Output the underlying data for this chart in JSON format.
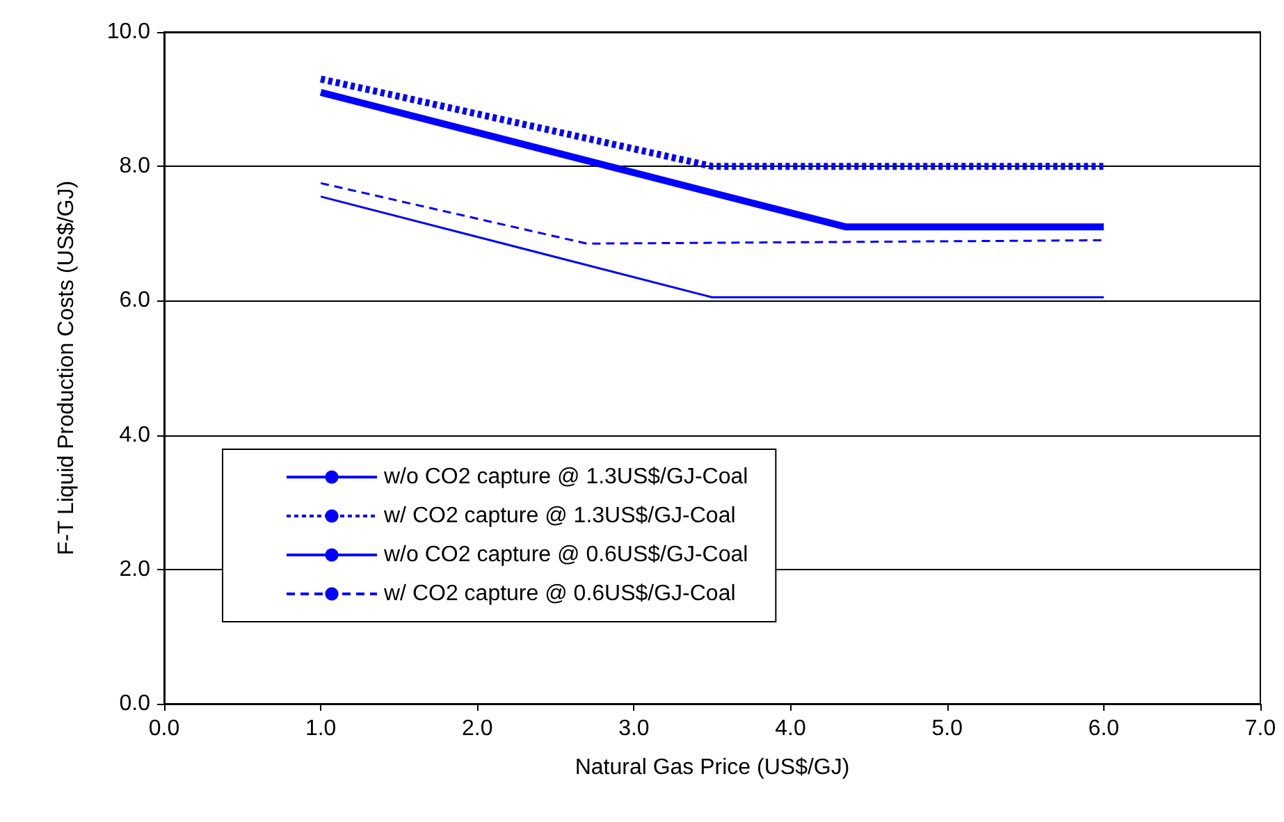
{
  "chart_data": {
    "type": "line",
    "xlabel": "Natural Gas Price (US$/GJ)",
    "ylabel": "F-T Liquid Production Costs (US$/GJ)",
    "xlim": [
      0,
      7
    ],
    "xticks": [
      {
        "value": 0,
        "label": "0.0"
      },
      {
        "value": 1,
        "label": "1.0"
      },
      {
        "value": 2,
        "label": "2.0"
      },
      {
        "value": 3,
        "label": "3.0"
      },
      {
        "value": 4,
        "label": "4.0"
      },
      {
        "value": 5,
        "label": "5.0"
      },
      {
        "value": 6,
        "label": "6.0"
      },
      {
        "value": 7,
        "label": "7.0"
      }
    ],
    "ylim": [
      0,
      10
    ],
    "yticks": [
      {
        "value": 0,
        "label": "0.0"
      },
      {
        "value": 2,
        "label": "2.0"
      },
      {
        "value": 4,
        "label": "4.0"
      },
      {
        "value": 6,
        "label": "6.0"
      },
      {
        "value": 8,
        "label": "8.0"
      },
      {
        "value": 10,
        "label": "10.0"
      }
    ],
    "grid": "y",
    "legend": "bottom left",
    "marker": "none",
    "series": [
      {
        "name": "w/o CO2 capture @ 1.3US$/GJ-Coal",
        "color": "#0000ff",
        "line_style": "solid",
        "x": [
          1,
          4.35,
          6
        ],
        "values": [
          9.1,
          7.1,
          7.1
        ]
      },
      {
        "name": "w/ CO2 capture @ 1.3US$/GJ-Coal",
        "color": "#0000ff",
        "line_style": "dashed",
        "x": [
          1,
          3.5,
          6
        ],
        "values": [
          9.3,
          8.0,
          8.0
        ]
      },
      {
        "name": "w/o CO2 capture @ 0.6US$/GJ-Coal",
        "color": "#0000ff",
        "line_style": "solid",
        "x": [
          1,
          3.5,
          6
        ],
        "values": [
          7.55,
          6.05,
          6.05
        ]
      },
      {
        "name": "w/ CO2 capture @ 0.6US$/GJ-Coal",
        "color": "#0000ff",
        "line_style": "dashed",
        "x": [
          1,
          2.7,
          6
        ],
        "values": [
          7.75,
          6.85,
          6.9
        ]
      }
    ]
  }
}
